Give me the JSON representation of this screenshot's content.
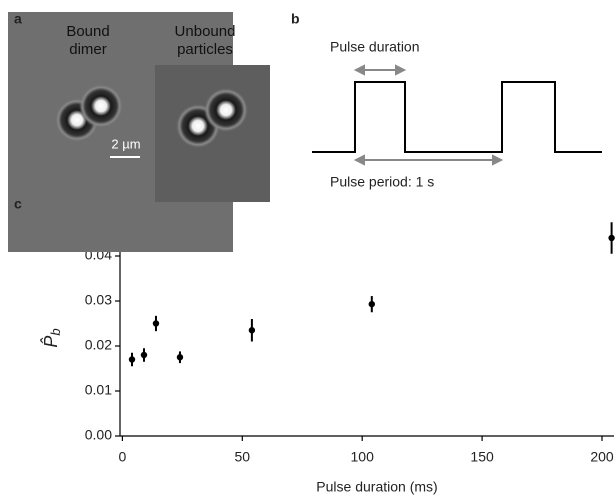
{
  "panels": {
    "a": "a",
    "b": "b",
    "c": "c"
  },
  "image": {
    "left_label": [
      "Bound",
      "dimer"
    ],
    "right_label": [
      "Unbound",
      "particles"
    ],
    "scale_bar": "2 µm"
  },
  "pulse": {
    "duration_label": "Pulse duration",
    "period_label": "Pulse period: 1 s"
  },
  "chart_data": {
    "type": "scatter",
    "x_label": "Pulse duration (ms)",
    "y_label": "P̂",
    "y_label_sub": "b",
    "x": [
      4,
      9,
      14,
      24,
      54,
      104,
      204
    ],
    "series": [
      {
        "color": "#000000",
        "values": [
          0.017,
          0.018,
          0.025,
          0.0175,
          0.0235,
          0.0293,
          0.044
        ],
        "errors": [
          0.0015,
          0.0015,
          0.0017,
          0.0013,
          0.0025,
          0.0018,
          0.0035
        ]
      }
    ],
    "xlim": [
      -1,
      205
    ],
    "xticks": [
      0,
      50,
      100,
      150,
      200
    ],
    "ylim": [
      0,
      0.048
    ],
    "yticks": [
      {
        "value": 0,
        "label": "0.00"
      },
      {
        "value": 0.01,
        "label": "0.01"
      },
      {
        "value": 0.02,
        "label": "0.02"
      },
      {
        "value": 0.03,
        "label": "0.03"
      },
      {
        "value": 0.04,
        "label": "0.04"
      }
    ]
  }
}
